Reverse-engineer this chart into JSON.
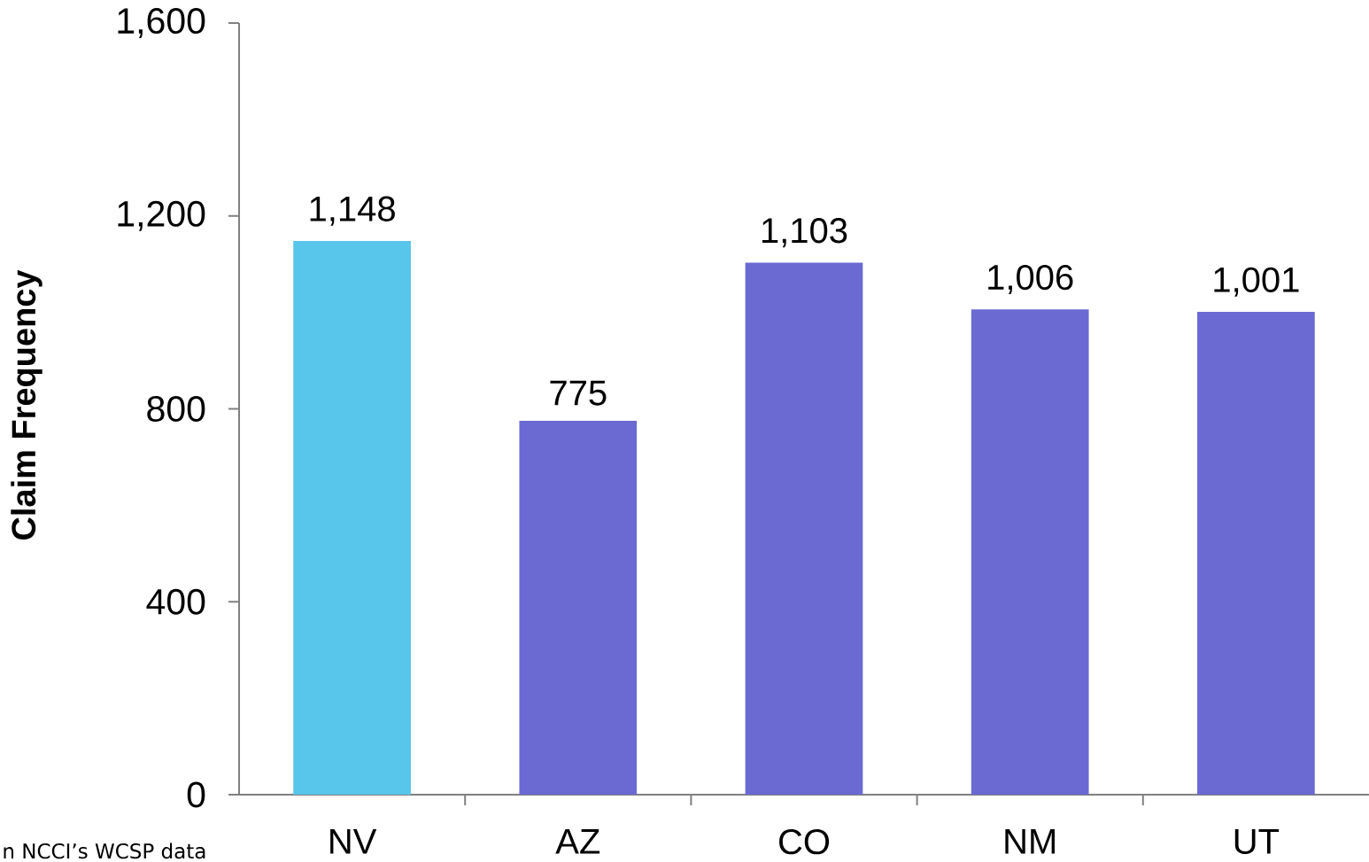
{
  "chart_data": {
    "type": "bar",
    "ylabel": "Claim Frequency",
    "categories": [
      "NV",
      "AZ",
      "CO",
      "NM",
      "UT"
    ],
    "values": [
      1148,
      775,
      1103,
      1006,
      1001
    ],
    "value_labels": [
      "1,148",
      "775",
      "1,103",
      "1,006",
      "1,001"
    ],
    "colors": [
      "#58c6ea",
      "#6a6ad2",
      "#6a6ad2",
      "#6a6ad2",
      "#6a6ad2"
    ],
    "ylim": [
      0,
      1600
    ],
    "yticks": [
      0,
      400,
      800,
      {
        "value": 1200,
        "label": "1,200"
      },
      {
        "value": 1600,
        "label": "1,600"
      }
    ],
    "annotations": [
      "n NCCI’s WCSP data"
    ]
  }
}
